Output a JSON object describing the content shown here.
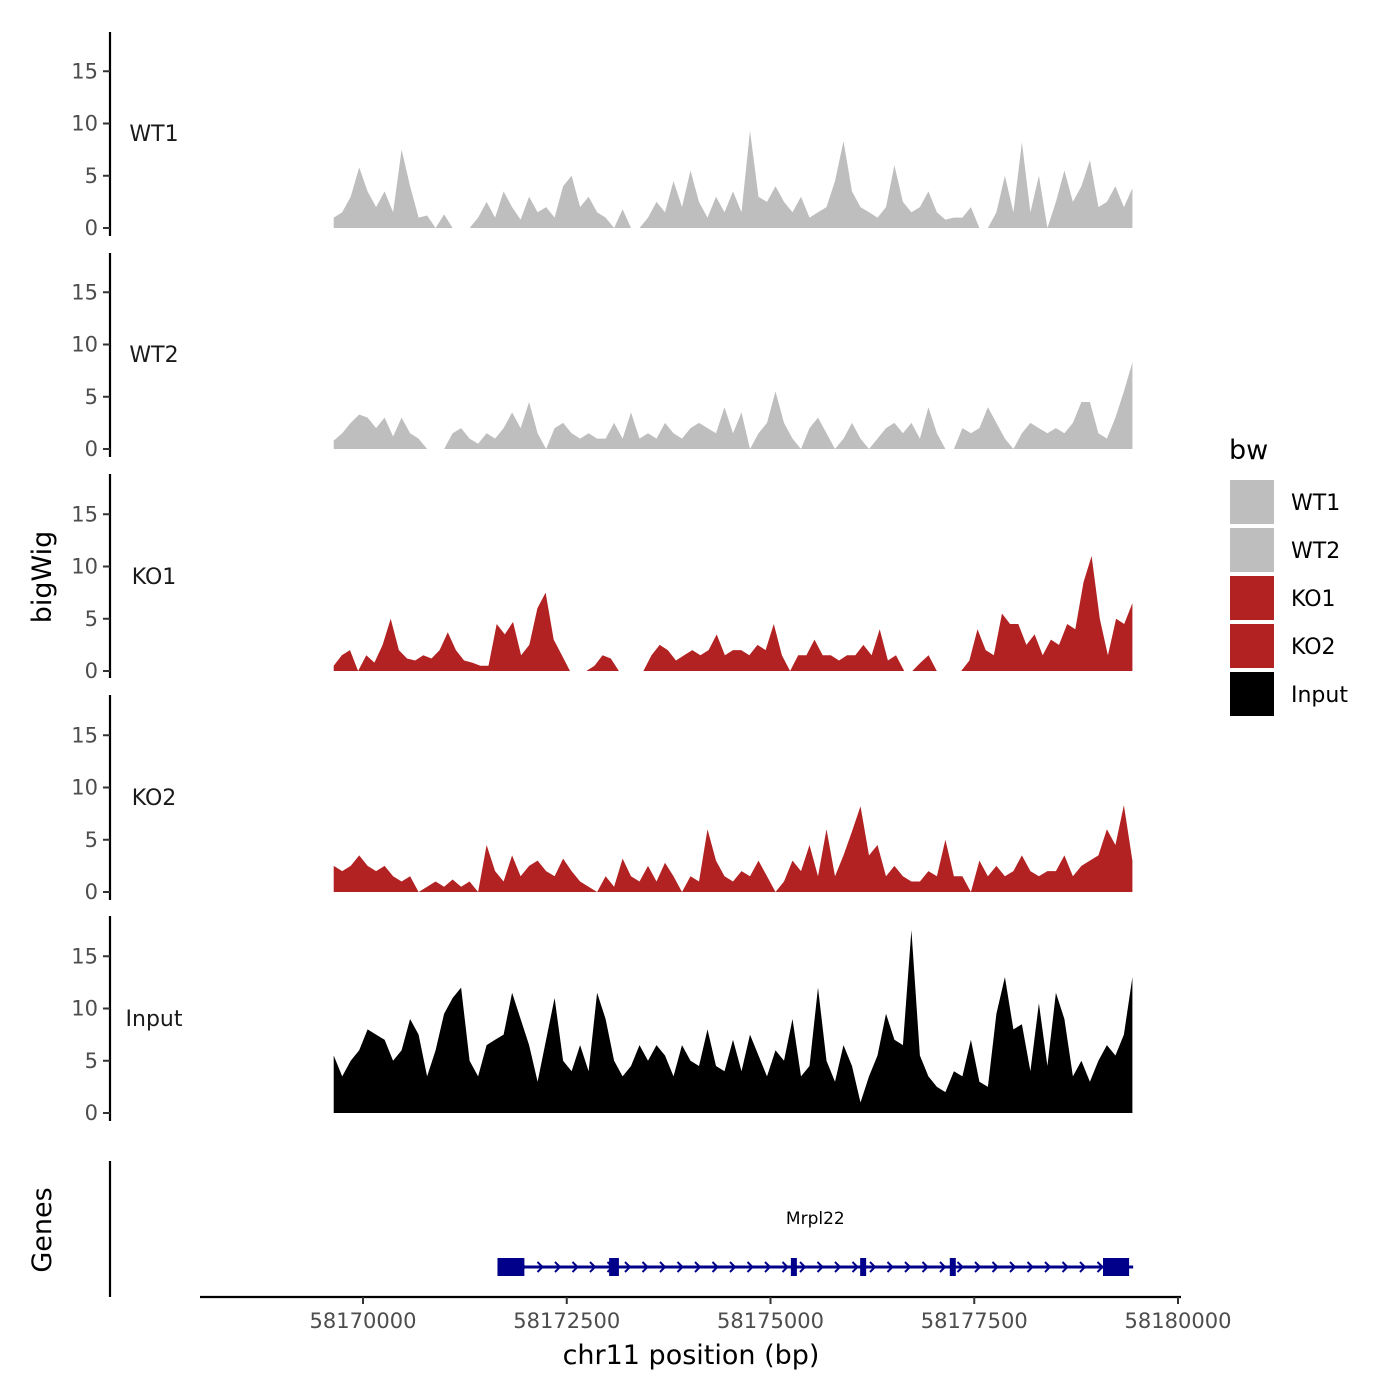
{
  "chart_data": {
    "type": "area",
    "ylabel": "bigWig",
    "genes_label": "Genes",
    "xlabel": "chr11 position (bp)",
    "xlim": [
      58168000,
      58180000
    ],
    "data_start": 58169640,
    "data_end": 58179440,
    "ylim": [
      0,
      19
    ],
    "yticks": [
      0,
      5,
      10,
      15
    ],
    "x_ticks": [
      58170000,
      58172500,
      58175000,
      58177500,
      58180000
    ],
    "x_tick_labels": [
      "58170000",
      "58172500",
      "58175000",
      "58177500",
      "58180000"
    ],
    "legend": {
      "title": "bw",
      "items": [
        {
          "label": "WT1",
          "color": "#bebebe"
        },
        {
          "label": "WT2",
          "color": "#bebebe"
        },
        {
          "label": "KO1",
          "color": "#b22222"
        },
        {
          "label": "KO2",
          "color": "#b22222"
        },
        {
          "label": "Input",
          "color": "#000000"
        }
      ]
    },
    "series": [
      {
        "name": "WT1",
        "color": "#bebebe",
        "values": [
          1.0,
          1.5,
          3.0,
          5.8,
          3.5,
          2.0,
          3.5,
          1.5,
          7.5,
          4.0,
          1.0,
          1.2,
          0,
          1.3,
          0,
          0,
          0,
          1.0,
          2.5,
          1.0,
          3.5,
          2.0,
          0.8,
          3.0,
          1.5,
          2.0,
          1.0,
          4.0,
          5.0,
          2.0,
          3.0,
          1.5,
          1.0,
          0,
          1.8,
          0,
          0,
          1.0,
          2.5,
          1.5,
          4.5,
          2.0,
          5.5,
          2.5,
          1.0,
          3.0,
          1.5,
          3.5,
          1.5,
          9.3,
          3.0,
          2.5,
          4.0,
          2.5,
          1.5,
          3.0,
          1.0,
          1.5,
          2.0,
          4.5,
          8.3,
          3.5,
          2.0,
          1.5,
          1.0,
          2.0,
          6.0,
          2.5,
          1.5,
          2.0,
          3.5,
          1.5,
          0.8,
          1.0,
          1.0,
          2.0,
          0,
          0,
          1.5,
          5.0,
          1.5,
          8.2,
          1.5,
          5.0,
          0,
          2.5,
          5.5,
          2.5,
          4.0,
          6.5,
          2.0,
          2.5,
          4.0,
          2.0,
          3.8
        ]
      },
      {
        "name": "WT2",
        "color": "#bebebe",
        "values": [
          0.8,
          1.5,
          2.5,
          3.3,
          3.0,
          2.0,
          3.0,
          1.2,
          3.0,
          1.5,
          1.0,
          0,
          0,
          0,
          1.5,
          2.0,
          1.0,
          0.5,
          1.5,
          1.0,
          2.0,
          3.5,
          2.0,
          4.5,
          1.5,
          0,
          2.0,
          2.5,
          1.5,
          1.0,
          1.5,
          1.0,
          1.0,
          2.5,
          1.0,
          3.5,
          1.0,
          1.5,
          1.0,
          2.5,
          1.5,
          1.0,
          2.0,
          2.5,
          2.0,
          1.5,
          4.0,
          1.5,
          3.5,
          0,
          1.5,
          2.5,
          5.5,
          2.5,
          1.0,
          0,
          2.0,
          3.0,
          1.5,
          0,
          1.0,
          2.5,
          1.0,
          0,
          1.0,
          2.0,
          2.5,
          1.5,
          2.5,
          1.0,
          4.0,
          1.5,
          0,
          0,
          2.0,
          1.5,
          2.0,
          4.0,
          2.5,
          1.0,
          0,
          1.5,
          2.5,
          2.0,
          1.5,
          2.0,
          1.5,
          2.5,
          4.5,
          4.5,
          1.5,
          1.0,
          3.0,
          5.5,
          8.3
        ]
      },
      {
        "name": "KO1",
        "color": "#b22222",
        "values": [
          0.5,
          1.5,
          2.0,
          0,
          1.5,
          0.8,
          2.5,
          5.0,
          2.0,
          1.2,
          1.0,
          1.5,
          1.2,
          2.0,
          3.7,
          2.0,
          1.0,
          0.8,
          0.5,
          0.5,
          4.5,
          3.5,
          4.7,
          1.5,
          2.5,
          6.0,
          7.5,
          3.0,
          1.5,
          0,
          0,
          0,
          0.5,
          1.5,
          1.2,
          0,
          0,
          0,
          0,
          1.5,
          2.5,
          2.0,
          1.0,
          1.5,
          2.0,
          1.5,
          2.0,
          3.5,
          1.5,
          2.0,
          2.0,
          1.5,
          2.5,
          2.0,
          4.5,
          1.5,
          0,
          1.5,
          1.5,
          3.0,
          1.5,
          1.5,
          1.0,
          1.5,
          1.5,
          2.5,
          1.5,
          4.0,
          1.0,
          1.5,
          0,
          0,
          0.8,
          1.5,
          0,
          0,
          0,
          0,
          1.0,
          4.0,
          2.0,
          1.5,
          5.5,
          4.5,
          4.5,
          2.5,
          3.5,
          1.5,
          3.0,
          2.5,
          4.5,
          4.0,
          8.5,
          11.0,
          5.0,
          1.5,
          5.0,
          4.5,
          6.5
        ]
      },
      {
        "name": "KO2",
        "color": "#b22222",
        "values": [
          2.5,
          2.0,
          2.5,
          3.5,
          2.5,
          2.0,
          2.5,
          1.5,
          1.0,
          1.5,
          0,
          0.5,
          1.0,
          0.5,
          1.2,
          0.5,
          1.0,
          0,
          4.5,
          2.0,
          1.0,
          3.5,
          1.5,
          2.5,
          3.0,
          2.0,
          1.5,
          3.2,
          2.0,
          1.0,
          0.5,
          0,
          1.5,
          0.5,
          3.2,
          1.5,
          1.0,
          2.5,
          1.0,
          2.8,
          1.5,
          0,
          1.5,
          1.0,
          6.0,
          3.0,
          1.5,
          1.0,
          2.0,
          1.5,
          3.0,
          1.5,
          0,
          1.0,
          3.0,
          2.0,
          4.5,
          1.5,
          6.0,
          1.5,
          3.5,
          5.8,
          8.2,
          3.5,
          4.5,
          1.5,
          2.5,
          1.5,
          1.0,
          1.0,
          2.0,
          1.5,
          5.0,
          1.5,
          1.5,
          0,
          3.0,
          1.5,
          2.5,
          1.5,
          2.0,
          3.5,
          2.0,
          1.5,
          2.0,
          2.0,
          3.5,
          1.5,
          2.5,
          3.0,
          3.5,
          6.0,
          4.5,
          8.3,
          3.0
        ]
      },
      {
        "name": "Input",
        "color": "#000000",
        "values": [
          5.5,
          3.5,
          5.0,
          6.0,
          8.0,
          7.5,
          7.0,
          5.0,
          6.0,
          9.0,
          7.5,
          3.5,
          6.0,
          9.5,
          11.0,
          12.0,
          5.0,
          3.5,
          6.5,
          7.0,
          7.5,
          11.5,
          9.0,
          6.5,
          3.0,
          7.0,
          11.0,
          5.0,
          4.0,
          6.5,
          4.0,
          11.5,
          9.0,
          5.0,
          3.5,
          4.5,
          6.5,
          5.0,
          6.5,
          5.5,
          3.5,
          6.5,
          5.0,
          4.5,
          8.0,
          4.5,
          4.0,
          7.0,
          4.0,
          7.5,
          5.5,
          3.5,
          6.0,
          5.0,
          9.0,
          3.5,
          4.5,
          12.0,
          5.0,
          3.0,
          6.5,
          4.5,
          1.0,
          3.5,
          5.5,
          9.5,
          7.0,
          6.5,
          17.5,
          5.5,
          3.5,
          2.5,
          2.0,
          4.0,
          3.5,
          7.0,
          3.0,
          2.5,
          9.5,
          13.0,
          8.0,
          8.5,
          4.0,
          10.5,
          4.5,
          11.5,
          9.0,
          3.5,
          5.0,
          3.0,
          5.0,
          6.5,
          5.5,
          7.5,
          13.0
        ]
      }
    ],
    "gene": {
      "name": "Mrpl22",
      "start": 58171650,
      "end": 58179450,
      "exons": [
        [
          58171650,
          58171980
        ],
        [
          58173020,
          58173140
        ],
        [
          58175250,
          58175300
        ],
        [
          58176100,
          58176160
        ],
        [
          58177200,
          58177250
        ],
        [
          58179080,
          58179400
        ]
      ]
    }
  }
}
